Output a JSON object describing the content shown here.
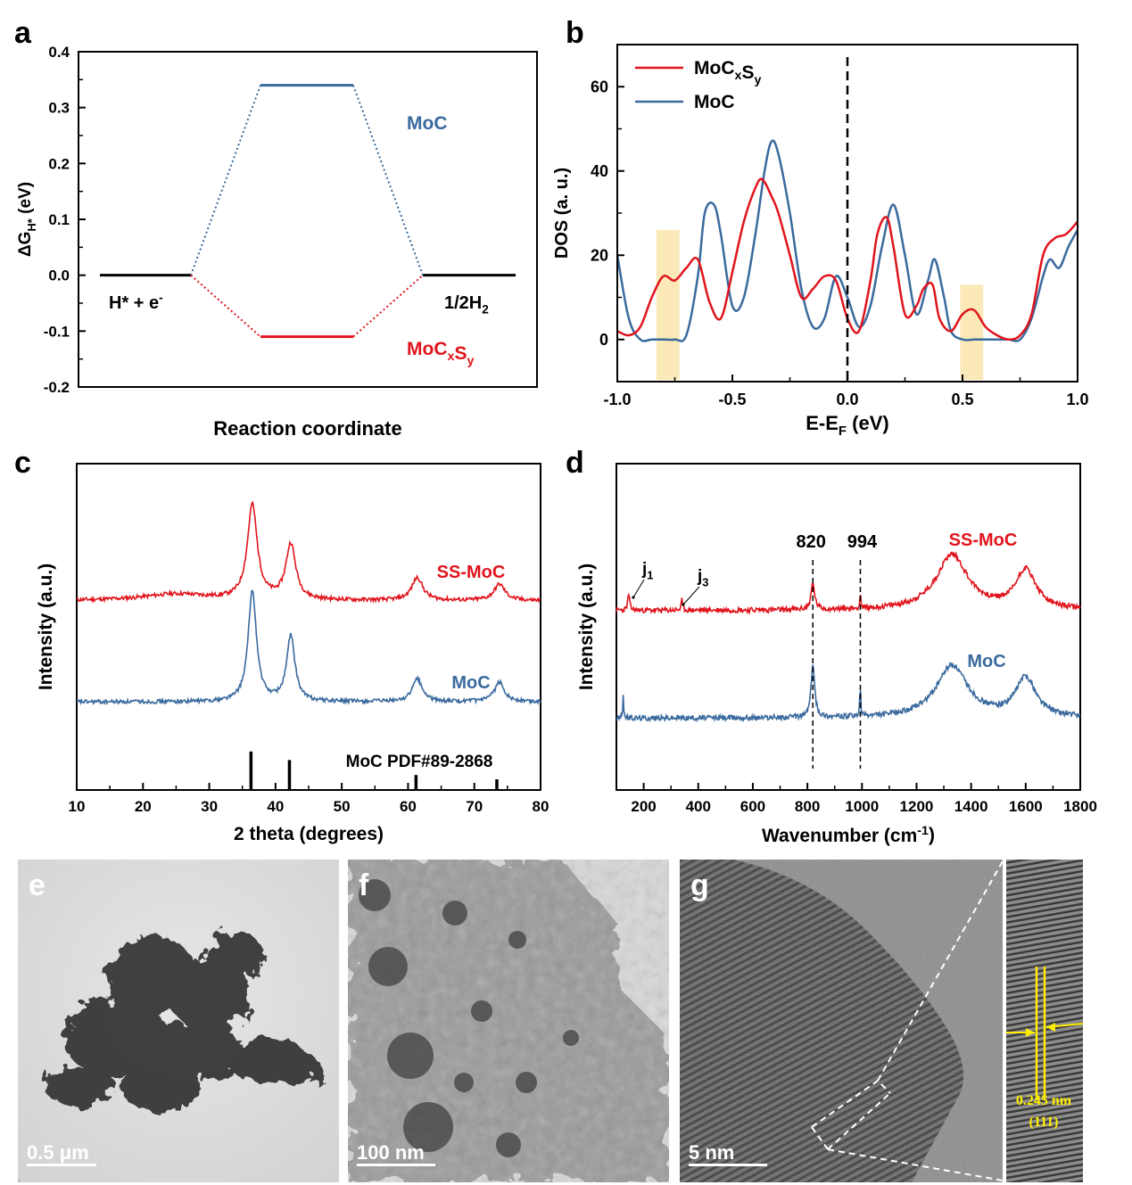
{
  "panels": {
    "a": "a",
    "b": "b",
    "c": "c",
    "d": "d",
    "e": "e",
    "f": "f",
    "g": "g"
  },
  "chart_data": [
    {
      "panel": "a",
      "type": "line",
      "xlabel": "Reaction coordinate",
      "ylabel": "ΔG_{H*} (eV)",
      "ylim": [
        -0.2,
        0.4
      ],
      "yticks": [
        "-0.2",
        "-0.1",
        "0.0",
        "0.1",
        "0.2",
        "0.3",
        "0.4"
      ],
      "states": [
        "H* + e⁻",
        "",
        "1/2H₂"
      ],
      "state_labels": {
        "start": "H* + e",
        "start_sup": "-",
        "end": "1/2H",
        "end_sub": "2"
      },
      "series": [
        {
          "name": "MoC",
          "label": "MoC",
          "values": [
            0.0,
            0.34,
            0.0
          ],
          "color": "#3a6a9e"
        },
        {
          "name": "MoCxSy",
          "label_main": [
            "MoC",
            "S"
          ],
          "label_subs": [
            "x",
            "y"
          ],
          "values": [
            0.0,
            -0.11,
            0.0
          ],
          "color": "#e0141c"
        }
      ]
    },
    {
      "panel": "b",
      "type": "line",
      "xlabel": "E-E_F (eV)",
      "ylabel": "DOS (a. u.)",
      "xlim": [
        -1.0,
        1.0
      ],
      "ylim": [
        -10,
        70
      ],
      "xticks": [
        "-1.0",
        "-0.5",
        "0.0",
        "0.5",
        "1.0"
      ],
      "yticks": [
        "0",
        "20",
        "40",
        "60"
      ],
      "legend": {
        "position": "top-left",
        "entries": [
          {
            "main": [
              "MoC",
              "S"
            ],
            "subs": [
              "x",
              "y"
            ],
            "color": "#e0141c"
          },
          {
            "main": [
              "MoC"
            ],
            "subs": [],
            "color": "#3a6a9e"
          }
        ]
      },
      "fermi_level": 0.0,
      "highlight_bands": [
        [
          -0.83,
          -0.73
        ],
        [
          0.49,
          0.59
        ]
      ],
      "highlight_color": "#fbe9b8",
      "series": [
        {
          "name": "MoCxSy",
          "color": "#e0141c",
          "x": [
            -1.0,
            -0.95,
            -0.9,
            -0.85,
            -0.8,
            -0.75,
            -0.7,
            -0.65,
            -0.6,
            -0.55,
            -0.5,
            -0.45,
            -0.4,
            -0.37,
            -0.33,
            -0.3,
            -0.25,
            -0.2,
            -0.15,
            -0.1,
            -0.05,
            0.0,
            0.05,
            0.1,
            0.13,
            0.17,
            0.2,
            0.25,
            0.3,
            0.33,
            0.37,
            0.4,
            0.45,
            0.5,
            0.55,
            0.6,
            0.65,
            0.7,
            0.75,
            0.8,
            0.85,
            0.9,
            0.95,
            1.0
          ],
          "y": [
            2,
            1,
            3,
            10,
            15,
            14,
            17,
            19,
            9,
            5,
            16,
            28,
            36,
            38,
            34,
            30,
            20,
            10,
            12,
            15,
            14,
            5,
            2,
            14,
            25,
            29,
            22,
            6,
            8,
            12,
            13,
            5,
            2,
            6,
            7,
            3,
            1,
            0,
            1,
            6,
            20,
            24,
            25,
            28
          ]
        },
        {
          "name": "MoC",
          "color": "#3a6a9e",
          "x": [
            -1.0,
            -0.95,
            -0.9,
            -0.85,
            -0.8,
            -0.75,
            -0.7,
            -0.65,
            -0.62,
            -0.58,
            -0.55,
            -0.5,
            -0.45,
            -0.4,
            -0.36,
            -0.33,
            -0.3,
            -0.25,
            -0.2,
            -0.15,
            -0.1,
            -0.05,
            0.0,
            0.05,
            0.1,
            0.15,
            0.2,
            0.25,
            0.3,
            0.35,
            0.38,
            0.42,
            0.45,
            0.5,
            0.55,
            0.6,
            0.65,
            0.7,
            0.75,
            0.8,
            0.85,
            0.88,
            0.92,
            0.96,
            1.0
          ],
          "y": [
            20,
            5,
            0,
            0,
            0,
            0,
            1,
            15,
            30,
            32,
            25,
            8,
            10,
            25,
            40,
            47,
            44,
            30,
            12,
            3,
            5,
            15,
            10,
            3,
            8,
            22,
            32,
            20,
            6,
            14,
            19,
            10,
            2,
            0,
            0,
            0,
            0,
            0,
            0,
            5,
            15,
            19,
            17,
            22,
            26
          ]
        }
      ]
    },
    {
      "panel": "c",
      "type": "line",
      "xlabel": "2 theta (degrees)",
      "ylabel": "Intensity (a.u.)",
      "xlim": [
        10,
        80
      ],
      "xticks": [
        "10",
        "20",
        "30",
        "40",
        "50",
        "60",
        "70",
        "80"
      ],
      "series": [
        {
          "name": "SS-MoC",
          "label": "SS-MoC",
          "color": "#e0141c",
          "offset": 0.58,
          "peaks": [
            [
              36.5,
              0.29,
              0.9
            ],
            [
              42.3,
              0.17,
              0.9
            ],
            [
              61.4,
              0.07,
              1.0
            ],
            [
              73.8,
              0.05,
              1.0
            ],
            [
              25,
              0.02,
              6
            ]
          ]
        },
        {
          "name": "MoC",
          "label": "MoC",
          "color": "#3a6a9e",
          "offset": 0.27,
          "peaks": [
            [
              36.5,
              0.34,
              0.75
            ],
            [
              42.3,
              0.2,
              0.75
            ],
            [
              61.4,
              0.07,
              0.9
            ],
            [
              73.8,
              0.06,
              0.9
            ]
          ]
        }
      ],
      "reference": {
        "label": "MoC PDF#89-2868",
        "positions": [
          36.3,
          42.1,
          61.2,
          73.4
        ],
        "heights": [
          0.9,
          0.7,
          0.35,
          0.25
        ]
      }
    },
    {
      "panel": "d",
      "type": "line",
      "xlabel": "Wavenumber (cm⁻¹)",
      "xlabel_main": "Wavenumber (cm",
      "xlabel_sup": "-1",
      "xlabel_tail": ")",
      "ylabel": "Intensity (a.u.)",
      "xlim": [
        100,
        1800
      ],
      "xticks": [
        "200",
        "400",
        "600",
        "800",
        "1000",
        "1200",
        "1400",
        "1600",
        "1800"
      ],
      "markers": [
        {
          "x": 820,
          "label": "820"
        },
        {
          "x": 994,
          "label": "994"
        }
      ],
      "annotations": [
        {
          "main": "j",
          "sub": "1",
          "x": 145
        },
        {
          "main": "j",
          "sub": "3",
          "x": 340
        }
      ],
      "series": [
        {
          "name": "SS-MoC",
          "label": "SS-MoC",
          "color": "#e0141c",
          "offset": 0.55,
          "peaks": [
            [
              820,
              0.08,
              8
            ],
            [
              994,
              0.05,
              2
            ],
            [
              1330,
              0.17,
              70
            ],
            [
              1600,
              0.12,
              45
            ],
            [
              145,
              0.05,
              4
            ],
            [
              340,
              0.03,
              3
            ]
          ]
        },
        {
          "name": "MoC",
          "label": "MoC",
          "color": "#3a6a9e",
          "offset": 0.22,
          "peaks": [
            [
              820,
              0.16,
              8
            ],
            [
              994,
              0.1,
              2
            ],
            [
              1330,
              0.16,
              70
            ],
            [
              1600,
              0.12,
              45
            ],
            [
              125,
              0.07,
              2
            ]
          ]
        }
      ]
    }
  ],
  "micrographs": [
    {
      "panel": "e",
      "scale": "0.5 μm"
    },
    {
      "panel": "f",
      "scale": "100 nm"
    },
    {
      "panel": "g",
      "scale": "5 nm",
      "inset_lattice": "0.245 nm",
      "inset_plane": "(111)"
    }
  ]
}
